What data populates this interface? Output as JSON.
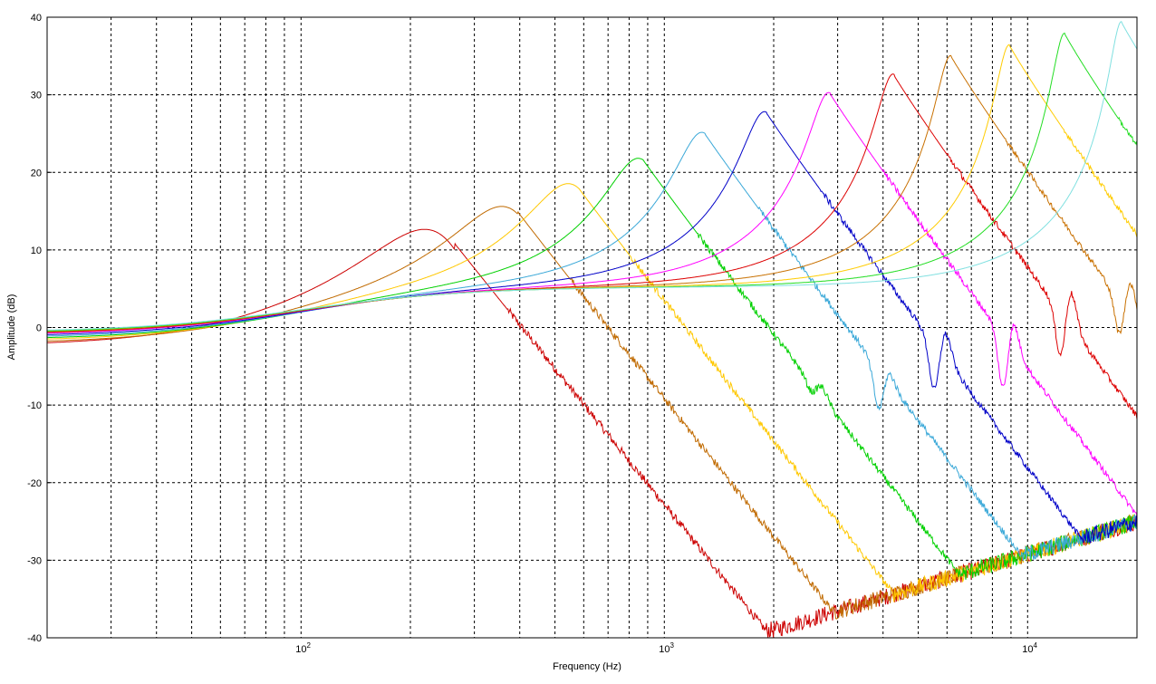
{
  "chart_data": {
    "type": "line",
    "xlabel": "Frequency (Hz)",
    "ylabel": "Amplitude (dB)",
    "xscale": "log",
    "xlim": [
      20,
      20000
    ],
    "ylim": [
      -40,
      40
    ],
    "grid": true,
    "legend": "none",
    "yticks": [
      -40,
      -30,
      -20,
      -10,
      0,
      10,
      20,
      30,
      40
    ],
    "ytick_labels": [
      "-40",
      "-30",
      "-20",
      "-10",
      "0",
      "10",
      "20",
      "30",
      "40"
    ],
    "xtick_major": [
      {
        "value": 100,
        "base": "10",
        "exp": "2"
      },
      {
        "value": 1000,
        "base": "10",
        "exp": "3"
      },
      {
        "value": 10000,
        "base": "10",
        "exp": "4"
      }
    ],
    "series": [
      {
        "color": "#cc0000",
        "peak_freq": 265,
        "peak_db": 10.8,
        "q_factor": 1.2,
        "noise": 0.55,
        "low_offset": -1.2,
        "notches": [],
        "bumps": []
      },
      {
        "color": "#c06a00",
        "peak_freq": 395,
        "peak_db": 14.9,
        "q_factor": 1.6,
        "noise": 0.5,
        "low_offset": -0.9,
        "notches": [],
        "bumps": []
      },
      {
        "color": "#ffc800",
        "peak_freq": 580,
        "peak_db": 18.0,
        "q_factor": 2.0,
        "noise": 0.45,
        "low_offset": -0.6,
        "notches": [],
        "bumps": []
      },
      {
        "color": "#00d000",
        "peak_freq": 880,
        "peak_db": 21.4,
        "q_factor": 2.6,
        "noise": 0.45,
        "low_offset": -0.4,
        "notches": [
          {
            "f": 2550,
            "depth": 1.5
          }
        ],
        "bumps": [
          {
            "f": 2700,
            "h": 1.5
          }
        ]
      },
      {
        "color": "#3aa8d8",
        "peak_freq": 1300,
        "peak_db": 24.8,
        "q_factor": 3.2,
        "noise": 0.45,
        "low_offset": -0.2,
        "notches": [
          {
            "f": 3900,
            "depth": 6
          }
        ],
        "bumps": [
          {
            "f": 4100,
            "h": 2
          }
        ]
      },
      {
        "color": "#0000c8",
        "peak_freq": 1920,
        "peak_db": 27.5,
        "q_factor": 3.8,
        "noise": 0.4,
        "low_offset": 0.0,
        "notches": [
          {
            "f": 5550,
            "depth": 7
          }
        ],
        "bumps": [
          {
            "f": 5900,
            "h": 4
          }
        ]
      },
      {
        "color": "#ff00ff",
        "peak_freq": 2870,
        "peak_db": 30.0,
        "q_factor": 4.5,
        "noise": 0.4,
        "low_offset": 0.2,
        "notches": [
          {
            "f": 8600,
            "depth": 9
          }
        ],
        "bumps": [
          {
            "f": 9000,
            "h": 5
          }
        ]
      },
      {
        "color": "#dd0000",
        "peak_freq": 4300,
        "peak_db": 32.4,
        "q_factor": 5.2,
        "noise": 0.4,
        "low_offset": 0.3,
        "notches": [
          {
            "f": 12400,
            "depth": 8
          }
        ],
        "bumps": [
          {
            "f": 13000,
            "h": 6
          }
        ]
      },
      {
        "color": "#c87000",
        "peak_freq": 6180,
        "peak_db": 34.8,
        "q_factor": 6.0,
        "noise": 0.35,
        "low_offset": 0.4,
        "notches": [
          {
            "f": 18000,
            "depth": 6
          }
        ],
        "bumps": [
          {
            "f": 19000,
            "h": 5
          }
        ]
      },
      {
        "color": "#ffcc00",
        "peak_freq": 8950,
        "peak_db": 36.2,
        "q_factor": 6.5,
        "noise": 0.35,
        "low_offset": 0.5,
        "notches": [],
        "bumps": []
      },
      {
        "color": "#22dd22",
        "peak_freq": 12700,
        "peak_db": 37.7,
        "q_factor": 7.0,
        "noise": 0.35,
        "low_offset": 0.5,
        "notches": [],
        "bumps": []
      },
      {
        "color": "#80e0e0",
        "peak_freq": 18200,
        "peak_db": 39.2,
        "q_factor": 7.5,
        "noise": 0.35,
        "low_offset": 0.6,
        "notches": [],
        "bumps": []
      }
    ],
    "noise_floor": {
      "at_min_db": -39,
      "min_freq": 2000,
      "rise_db_per_decade": 14
    }
  }
}
